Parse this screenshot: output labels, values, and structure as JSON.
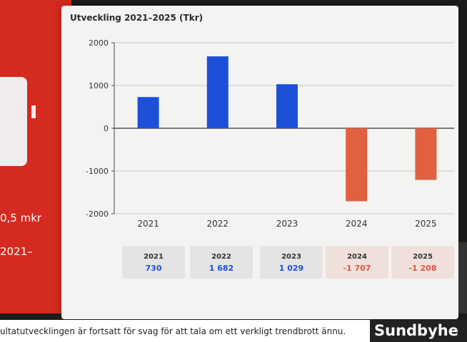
{
  "left_panel": {
    "text_amount": "0,5 mkr",
    "text_years": "2021–"
  },
  "chart_data": {
    "type": "bar",
    "title": "Utveckling 2021–2025 (Tkr)",
    "categories": [
      "2021",
      "2022",
      "2023",
      "2024",
      "2025"
    ],
    "values": [
      730,
      1682,
      1029,
      -1707,
      -1208
    ],
    "ylim": [
      -2000,
      2000
    ],
    "yticks": [
      "2000",
      "1000",
      "0",
      "-1000",
      "-2000"
    ],
    "colors": {
      "positive": "#1d4fd8",
      "negative": "#e0603f"
    },
    "grid": true
  },
  "summary": [
    {
      "year": "2021",
      "value": "730"
    },
    {
      "year": "2022",
      "value": "1 682"
    },
    {
      "year": "2023",
      "value": "1 029"
    },
    {
      "year": "2024",
      "value": "-1 707"
    },
    {
      "year": "2025",
      "value": "-1 208"
    }
  ],
  "footer": {
    "text": "ultatutvecklingen är fortsatt för svag för att tala om ett verkligt trendbrott ännu.",
    "logo": "Sundbyhe"
  }
}
